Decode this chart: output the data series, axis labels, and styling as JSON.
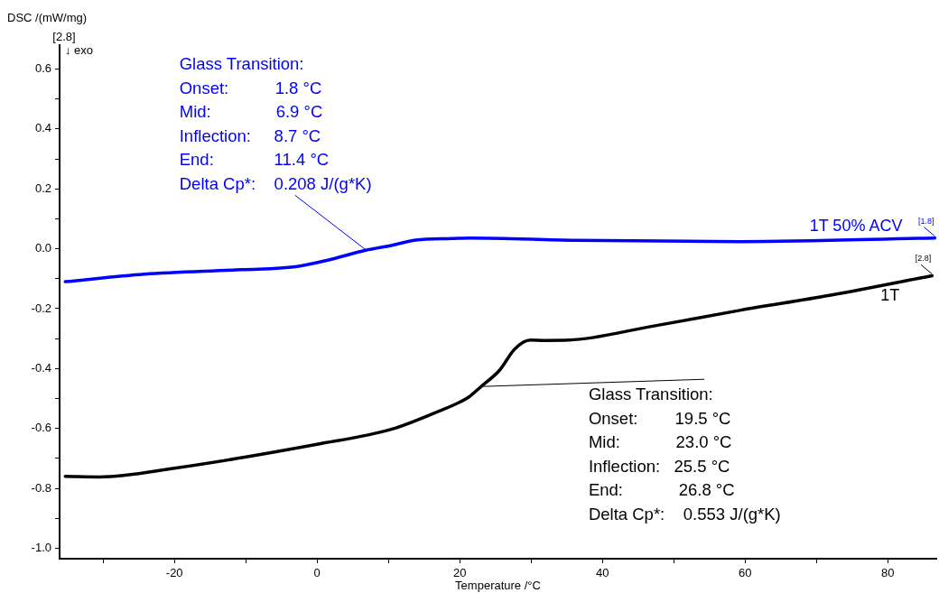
{
  "chart_data": {
    "type": "line",
    "xlabel": "Temperature /°C",
    "ylabel": "DSC /(mW/mg)",
    "xlim": [
      -36.1,
      86.8
    ],
    "ylim": [
      -1.035,
      0.68
    ],
    "xticks": [
      -20,
      0,
      20,
      40,
      60,
      80,
      {
        "value": -30,
        "label": null
      },
      {
        "value": -10,
        "label": null
      },
      {
        "value": 10,
        "label": null
      },
      {
        "value": 30,
        "label": null
      },
      {
        "value": 50,
        "label": null
      },
      {
        "value": 70,
        "label": null
      }
    ],
    "yticks": [
      {
        "value": -1.0,
        "label": "-1.0"
      },
      -0.8,
      -0.6,
      -0.4,
      -0.2,
      {
        "value": 0,
        "label": "0.0"
      },
      0.2,
      0.4,
      0.6,
      {
        "value": -0.9,
        "label": null
      },
      {
        "value": -0.7,
        "label": null
      },
      {
        "value": -0.5,
        "label": null
      },
      {
        "value": -0.3,
        "label": null
      },
      {
        "value": -0.1,
        "label": null
      },
      {
        "value": 0.1,
        "label": null
      },
      {
        "value": 0.3,
        "label": null
      },
      {
        "value": 0.5,
        "label": null
      }
    ],
    "grid": false,
    "legend": "right",
    "marker": "none",
    "line_style": "solid",
    "series": [
      {
        "name": "1T 50% ACV",
        "color": "#0000ff",
        "x": [
          -35.3,
          -24.2,
          -10.6,
          -3.0,
          2.0,
          6.8,
          10.4,
          13.8,
          18.9,
          21.4,
          36.2,
          59.4,
          86.6
        ],
        "values": [
          -0.11,
          -0.085,
          -0.07,
          -0.06,
          -0.035,
          -0.005,
          0.011,
          0.029,
          0.034,
          0.036,
          0.028,
          0.024,
          0.036
        ]
      },
      {
        "name": "1T",
        "color": "#000000",
        "x": [
          -35.3,
          -30.5,
          -20,
          0,
          10.4,
          16.7,
          21.2,
          23,
          25.6,
          27.7,
          29.9,
          31.9,
          35.3,
          46.7,
          59.4,
          72,
          86.2
        ],
        "values": [
          -0.76,
          -0.762,
          -0.733,
          -0.653,
          -0.603,
          -0.546,
          -0.496,
          -0.46,
          -0.405,
          -0.335,
          -0.305,
          -0.306,
          -0.305,
          -0.26,
          -0.205,
          -0.155,
          -0.09
        ]
      }
    ],
    "annotations": [
      "[2.8]",
      "↓ exo",
      {
        "text": "Glass Transition:\nOnset:          1.8 °C\nMid:              6.9 °C\nInflection:     8.7 °C\nEnd:             11.4 °C\nDelta Cp*:    0.208 J/(g*K)",
        "x": 6.9,
        "y": -0.005
      },
      {
        "text": "Glass Transition:\nOnset:        19.5 °C\nMid:            23.0 °C\nInflection:   25.5 °C\nEnd:            26.8 °C\nDelta Cp*:    0.553 J/(g*K)",
        "x": 23,
        "y": -0.46
      },
      {
        "text": "[1.8]",
        "x": 86.6,
        "y": 0.036
      },
      {
        "text": "[2.8]",
        "x": 86.2,
        "y": -0.09
      }
    ]
  }
}
